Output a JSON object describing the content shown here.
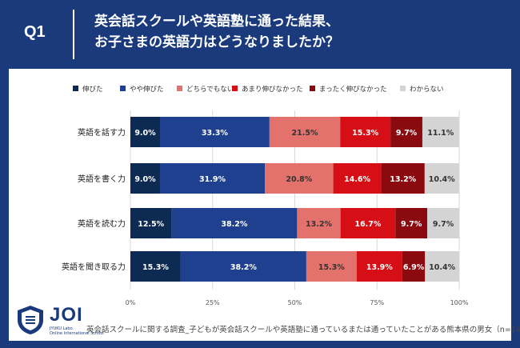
{
  "header": {
    "q_label": "Q1",
    "title_line1": "英会話スクールや英語塾に通った結果、",
    "title_line2": "お子さまの英語力はどうなりましたか？"
  },
  "footer": {
    "logo_text": "JOI",
    "logo_sub1": "JYUKU Labo.",
    "logo_sub2": "Online International School",
    "source": "英会話スクールに関する調査_子どもが英会話スクールや英語塾に通っているまたは通っていたことがある熊本県の男女（n=144）"
  },
  "colors": {
    "background": "#1a3a7c",
    "panel": "#ffffff"
  },
  "chart_data": {
    "type": "bar",
    "orientation": "horizontal",
    "stacked": true,
    "categories": [
      "英語を話す力",
      "英語を書く力",
      "英語を読む力",
      "英語を聞き取る力"
    ],
    "series": [
      {
        "name": "伸びた",
        "color": "#0d2b52",
        "values": [
          9.0,
          9.0,
          12.5,
          15.3
        ],
        "labels": [
          "9.0%",
          "9.0%",
          "12.5%",
          "15.3%"
        ],
        "label_color": "#ffffff"
      },
      {
        "name": "やや伸びた",
        "color": "#1f3f8f",
        "values": [
          33.3,
          31.9,
          38.2,
          38.2
        ],
        "labels": [
          "33.3%",
          "31.9%",
          "38.2%",
          "38.2%"
        ],
        "label_color": "#ffffff"
      },
      {
        "name": "どちらでもない",
        "color": "#e3716c",
        "values": [
          21.5,
          20.8,
          13.2,
          15.3
        ],
        "labels": [
          "21.5%",
          "20.8%",
          "13.2%",
          "15.3%"
        ],
        "label_color": "#333333"
      },
      {
        "name": "あまり伸びなかった",
        "color": "#d50f15",
        "values": [
          15.3,
          14.6,
          16.7,
          13.9
        ],
        "labels": [
          "15.3%",
          "14.6%",
          "16.7%",
          "13.9%"
        ],
        "label_color": "#ffffff"
      },
      {
        "name": "まったく伸びなかった",
        "color": "#8b0a0f",
        "values": [
          9.7,
          13.2,
          9.7,
          6.9
        ],
        "labels": [
          "9.7%",
          "13.2%",
          "9.7%",
          "6.9%"
        ],
        "label_color": "#ffffff"
      },
      {
        "name": "わからない",
        "color": "#d4d4d4",
        "values": [
          11.1,
          10.4,
          9.7,
          10.4
        ],
        "labels": [
          "11.1%",
          "10.4%",
          "9.7%",
          "10.4%"
        ],
        "label_color": "#333333"
      }
    ],
    "x_ticks": [
      "0%",
      "25%",
      "50%",
      "75%",
      "100%"
    ],
    "xlim": [
      0,
      100
    ],
    "legend_position": "top",
    "grid": true
  }
}
